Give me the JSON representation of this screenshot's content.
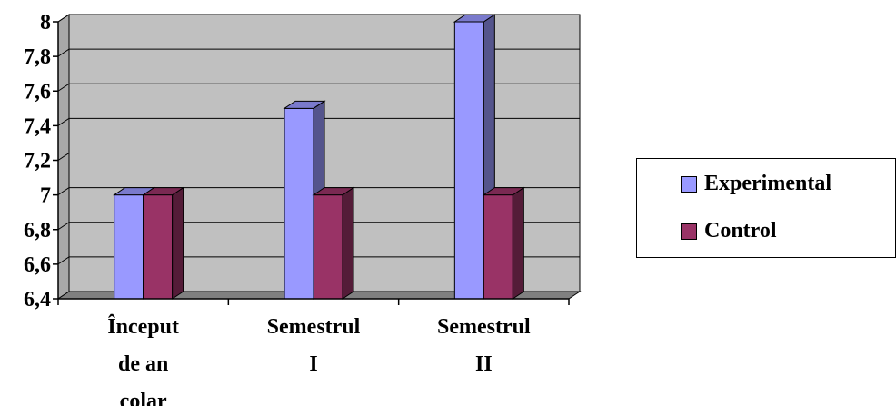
{
  "chart_data": {
    "type": "bar",
    "categories": [
      [
        "Început",
        "de an",
        "colar"
      ],
      [
        "Semestrul",
        "I"
      ],
      [
        "Semestrul",
        "II"
      ]
    ],
    "series": [
      {
        "name": "Experimental",
        "values": [
          7.0,
          7.5,
          8.0
        ],
        "color": "#9999ff"
      },
      {
        "name": "Control",
        "values": [
          7.0,
          7.0,
          7.0
        ],
        "color": "#993366"
      }
    ],
    "ylim": [
      6.4,
      8.0
    ],
    "yticks": [
      "6,4",
      "6,6",
      "6,8",
      "7",
      "7,2",
      "7,4",
      "7,6",
      "7,8",
      "8"
    ],
    "grid": true,
    "legend_position": "right"
  }
}
